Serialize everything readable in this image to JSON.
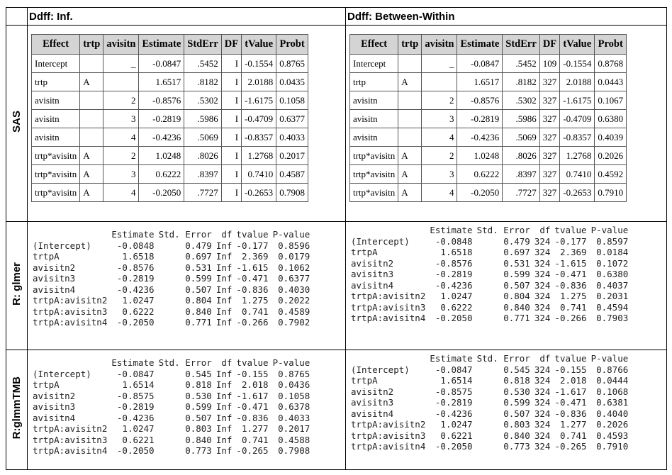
{
  "columns": [
    "Ddff: Inf.",
    "Ddff: Between-Within"
  ],
  "sections": [
    {
      "label": "SAS",
      "tables": [
        {
          "header": [
            "Effect",
            "trtp",
            "avisitn",
            "Estimate",
            "StdErr",
            "DF",
            "tValue",
            "Probt"
          ],
          "rows": [
            [
              "Intercept",
              null,
              "_",
              "-0.0847",
              ".5452",
              "I",
              "-0.1554",
              "0.8765"
            ],
            [
              "trtp",
              "A",
              null,
              "1.6517",
              ".8182",
              "I",
              "2.0188",
              "0.0435"
            ],
            [
              "avisitn",
              null,
              "2",
              "-0.8576",
              ".5302",
              "I",
              "-1.6175",
              "0.1058"
            ],
            [
              "avisitn",
              null,
              "3",
              "-0.2819",
              ".5986",
              "I",
              "-0.4709",
              "0.6377"
            ],
            [
              "avisitn",
              null,
              "4",
              "-0.4236",
              ".5069",
              "I",
              "-0.8357",
              "0.4033"
            ],
            [
              "trtp*avisitn",
              "A",
              "2",
              "1.0248",
              ".8026",
              "I",
              "1.2768",
              "0.2017"
            ],
            [
              "trtp*avisitn",
              "A",
              "3",
              "0.6222",
              ".8397",
              "I",
              "0.7410",
              "0.4587"
            ],
            [
              "trtp*avisitn",
              "A",
              "4",
              "-0.2050",
              ".7727",
              "I",
              "-0.2653",
              "0.7908"
            ]
          ]
        },
        {
          "header": [
            "Effect",
            "trtp",
            "avisitn",
            "Estimate",
            "StdErr",
            "DF",
            "tValue",
            "Probt"
          ],
          "rows": [
            [
              "Intercept",
              null,
              "_",
              "-0.0847",
              ".5452",
              "109",
              "-0.1554",
              "0.8768"
            ],
            [
              "trtp",
              "A",
              null,
              "1.6517",
              ".8182",
              "327",
              "2.0188",
              "0.0443"
            ],
            [
              "avisitn",
              null,
              "2",
              "-0.8576",
              ".5302",
              "327",
              "-1.6175",
              "0.1067"
            ],
            [
              "avisitn",
              null,
              "3",
              "-0.2819",
              ".5986",
              "327",
              "-0.4709",
              "0.6380"
            ],
            [
              "avisitn",
              null,
              "4",
              "-0.4236",
              ".5069",
              "327",
              "-0.8357",
              "0.4039"
            ],
            [
              "trtp*avisitn",
              "A",
              "2",
              "1.0248",
              ".8026",
              "327",
              "1.2768",
              "0.2026"
            ],
            [
              "trtp*avisitn",
              "A",
              "3",
              "0.6222",
              ".8397",
              "327",
              "0.7410",
              "0.4592"
            ],
            [
              "trtp*avisitn",
              "A",
              "4",
              "-0.2050",
              ".7727",
              "327",
              "-0.2653",
              "0.7910"
            ]
          ]
        }
      ]
    },
    {
      "label": "R: glmer",
      "tables": [
        {
          "header": [
            "Estimate",
            "Std. Error",
            "df",
            "tvalue",
            "P-value"
          ],
          "rows": [
            [
              "(Intercept)",
              "-0.0848",
              "0.479",
              "Inf",
              "-0.177",
              "0.8596"
            ],
            [
              "trtpA",
              "1.6518",
              "0.697",
              "Inf",
              "2.369",
              "0.0179"
            ],
            [
              "avisitn2",
              "-0.8576",
              "0.531",
              "Inf",
              "-1.615",
              "0.1062"
            ],
            [
              "avisitn3",
              "-0.2819",
              "0.599",
              "Inf",
              "-0.471",
              "0.6377"
            ],
            [
              "avisitn4",
              "-0.4236",
              "0.507",
              "Inf",
              "-0.836",
              "0.4030"
            ],
            [
              "trtpA:avisitn2",
              "1.0247",
              "0.804",
              "Inf",
              "1.275",
              "0.2022"
            ],
            [
              "trtpA:avisitn3",
              "0.6222",
              "0.840",
              "Inf",
              "0.741",
              "0.4589"
            ],
            [
              "trtpA:avisitn4",
              "-0.2050",
              "0.771",
              "Inf",
              "-0.266",
              "0.7902"
            ]
          ]
        },
        {
          "header": [
            "Estimate",
            "Std. Error",
            "df",
            "tvalue",
            "P-value"
          ],
          "rows": [
            [
              "(Intercept)",
              "-0.0848",
              "0.479",
              "324",
              "-0.177",
              "0.8597"
            ],
            [
              "trtpA",
              "1.6518",
              "0.697",
              "324",
              "2.369",
              "0.0184"
            ],
            [
              "avisitn2",
              "-0.8576",
              "0.531",
              "324",
              "-1.615",
              "0.1072"
            ],
            [
              "avisitn3",
              "-0.2819",
              "0.599",
              "324",
              "-0.471",
              "0.6380"
            ],
            [
              "avisitn4",
              "-0.4236",
              "0.507",
              "324",
              "-0.836",
              "0.4037"
            ],
            [
              "trtpA:avisitn2",
              "1.0247",
              "0.804",
              "324",
              "1.275",
              "0.2031"
            ],
            [
              "trtpA:avisitn3",
              "0.6222",
              "0.840",
              "324",
              "0.741",
              "0.4594"
            ],
            [
              "trtpA:avisitn4",
              "-0.2050",
              "0.771",
              "324",
              "-0.266",
              "0.7903"
            ]
          ]
        }
      ]
    },
    {
      "label": "R:glmmTMB",
      "tables": [
        {
          "header": [
            "Estimate",
            "Std. Error",
            "df",
            "tvalue",
            "P-value"
          ],
          "rows": [
            [
              "(Intercept)",
              "-0.0847",
              "0.545",
              "Inf",
              "-0.155",
              "0.8765"
            ],
            [
              "trtpA",
              "1.6514",
              "0.818",
              "Inf",
              "2.018",
              "0.0436"
            ],
            [
              "avisitn2",
              "-0.8575",
              "0.530",
              "Inf",
              "-1.617",
              "0.1058"
            ],
            [
              "avisitn3",
              "-0.2819",
              "0.599",
              "Inf",
              "-0.471",
              "0.6378"
            ],
            [
              "avisitn4",
              "-0.4236",
              "0.507",
              "Inf",
              "-0.836",
              "0.4033"
            ],
            [
              "trtpA:avisitn2",
              "1.0247",
              "0.803",
              "Inf",
              "1.277",
              "0.2017"
            ],
            [
              "trtpA:avisitn3",
              "0.6221",
              "0.840",
              "Inf",
              "0.741",
              "0.4588"
            ],
            [
              "trtpA:avisitn4",
              "-0.2050",
              "0.773",
              "Inf",
              "-0.265",
              "0.7908"
            ]
          ]
        },
        {
          "header": [
            "Estimate",
            "Std. Error",
            "df",
            "tvalue",
            "P-value"
          ],
          "rows": [
            [
              "(Intercept)",
              "-0.0847",
              "0.545",
              "324",
              "-0.155",
              "0.8766"
            ],
            [
              "trtpA",
              "1.6514",
              "0.818",
              "324",
              "2.018",
              "0.0444"
            ],
            [
              "avisitn2",
              "-0.8575",
              "0.530",
              "324",
              "-1.617",
              "0.1068"
            ],
            [
              "avisitn3",
              "-0.2819",
              "0.599",
              "324",
              "-0.471",
              "0.6381"
            ],
            [
              "avisitn4",
              "-0.4236",
              "0.507",
              "324",
              "-0.836",
              "0.4040"
            ],
            [
              "trtpA:avisitn2",
              "1.0247",
              "0.803",
              "324",
              "1.277",
              "0.2026"
            ],
            [
              "trtpA:avisitn3",
              "0.6221",
              "0.840",
              "324",
              "0.741",
              "0.4593"
            ],
            [
              "trtpA:avisitn4",
              "-0.2050",
              "0.773",
              "324",
              "-0.265",
              "0.7910"
            ]
          ]
        }
      ]
    }
  ]
}
